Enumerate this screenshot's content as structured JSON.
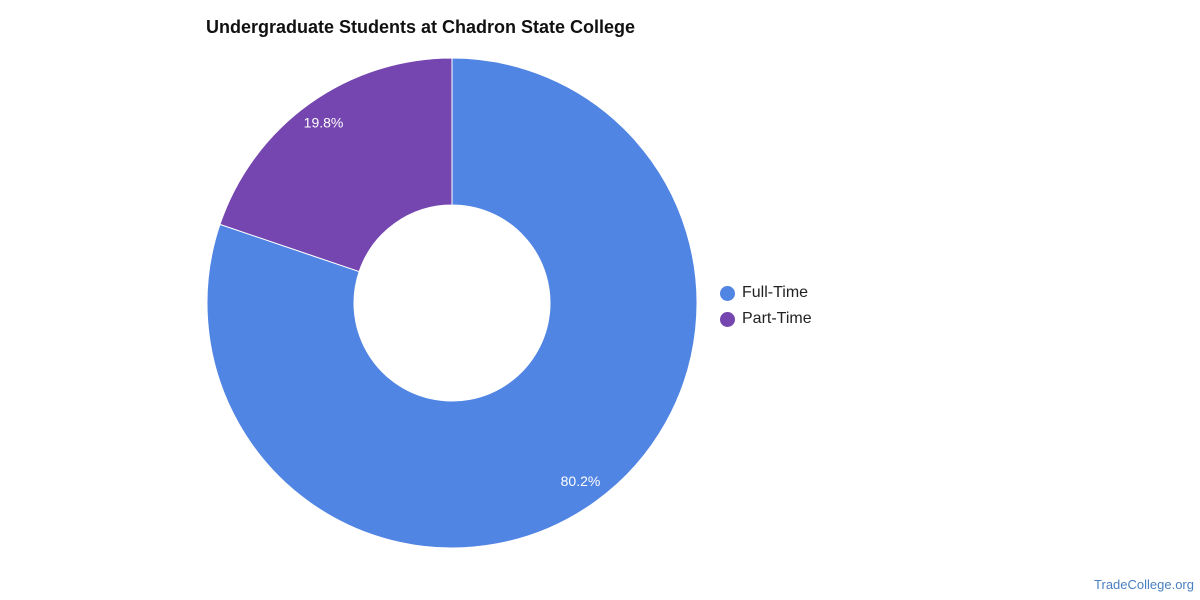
{
  "chart_data": {
    "type": "pie",
    "title": "Undergraduate Students at Chadron State College",
    "categories": [
      "Full-Time",
      "Part-Time"
    ],
    "values": [
      80.2,
      19.8
    ],
    "data_labels": [
      "80.2%",
      "19.8%"
    ],
    "colors": [
      "#5185e3",
      "#7546af"
    ],
    "donut": true,
    "legend_position": "right"
  },
  "footer": {
    "brand": "TradeCollege.org"
  }
}
